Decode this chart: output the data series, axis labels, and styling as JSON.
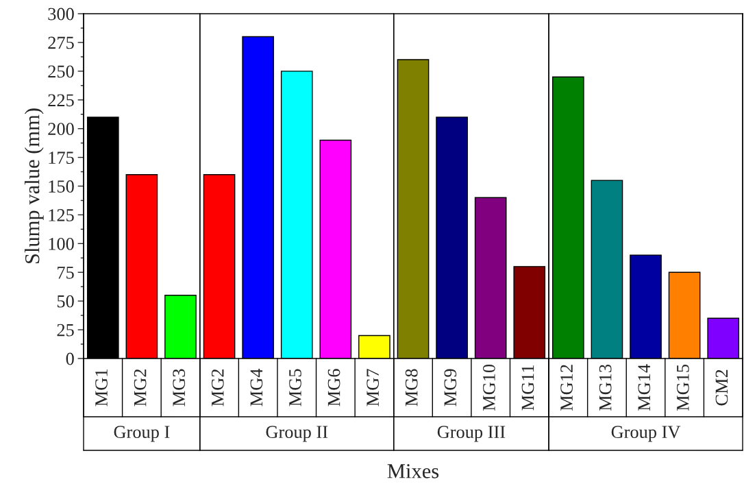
{
  "chart_data": {
    "type": "bar",
    "xlabel": "Mixes",
    "ylabel": "Slump value (mm)",
    "categories": [
      "MG1",
      "MG2",
      "MG3",
      "MG2",
      "MG4",
      "MG5",
      "MG6",
      "MG7",
      "MG8",
      "MG9",
      "MG10",
      "MG11",
      "MG12",
      "MG13",
      "MG14",
      "MG15",
      "CM2"
    ],
    "values": [
      210,
      160,
      55,
      160,
      280,
      250,
      190,
      20,
      260,
      210,
      140,
      80,
      245,
      155,
      90,
      75,
      35
    ],
    "colors": [
      "#000000",
      "#ff0000",
      "#00ff00",
      "#ff0000",
      "#0000ff",
      "#00ffff",
      "#ff00ff",
      "#ffff00",
      "#808000",
      "#000080",
      "#800080",
      "#800000",
      "#008000",
      "#008080",
      "#0000a0",
      "#ff8000",
      "#8000ff"
    ],
    "ylim": [
      0,
      300
    ],
    "yticks": [
      0,
      25,
      50,
      75,
      100,
      125,
      150,
      175,
      200,
      225,
      250,
      275,
      300
    ],
    "annotations": [
      "Group I",
      "Group II",
      "Group III",
      "Group IV"
    ],
    "grid": false,
    "legend": false
  }
}
